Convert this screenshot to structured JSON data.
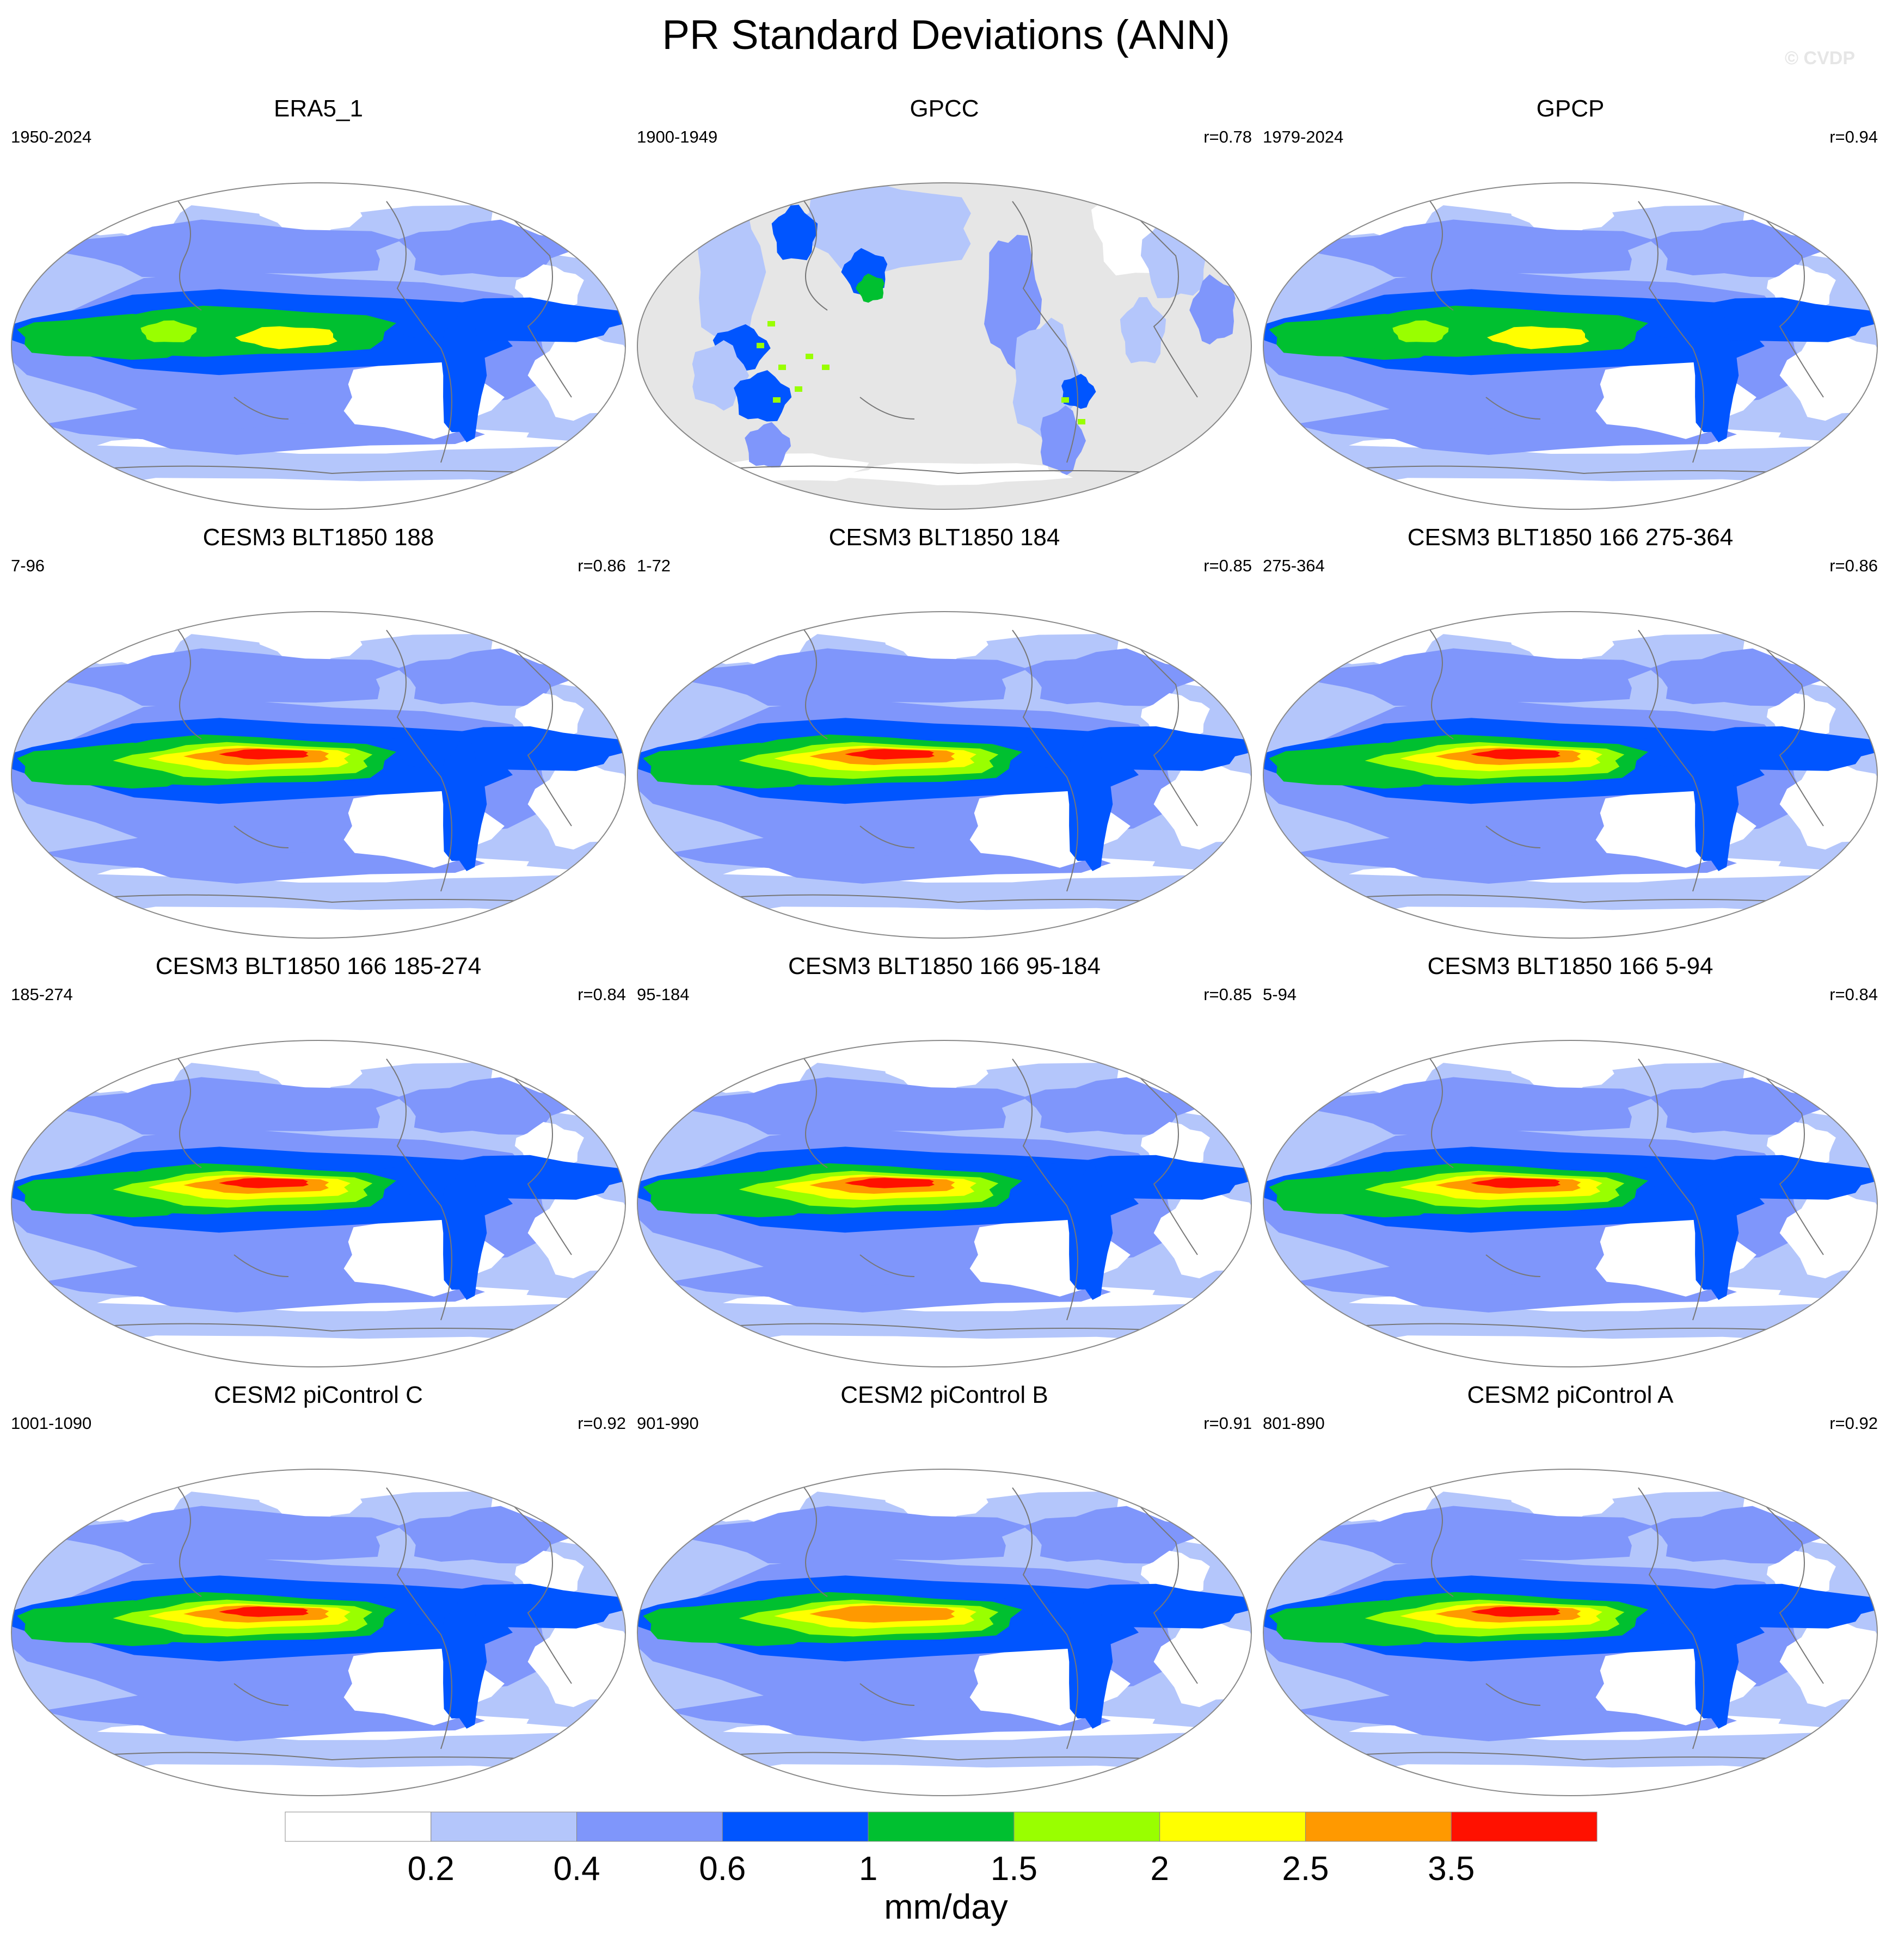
{
  "title": "PR Standard Deviations (ANN)",
  "watermark": "© CVDP",
  "colorbar": {
    "units": "mm/day",
    "colors": [
      "#ffffff",
      "#b4c6fb",
      "#7f96fb",
      "#0055ff",
      "#00c030",
      "#99ff00",
      "#ffff00",
      "#ff9900",
      "#ff1100"
    ],
    "labels": [
      "0.2",
      "0.4",
      "0.6",
      "1",
      "1.5",
      "2",
      "2.5",
      "3.5"
    ]
  },
  "colors": {
    "ocean_missing": "#e6e6e6",
    "coast": "#777777",
    "map_border": "#888888"
  },
  "panels": [
    {
      "title": "ERA5_1",
      "period": "1950-2024",
      "corr": "",
      "style": "obs",
      "peak": 2
    },
    {
      "title": "GPCC",
      "period": "1900-1949",
      "corr": "r=0.78",
      "style": "land",
      "peak": 3
    },
    {
      "title": "GPCP",
      "period": "1979-2024",
      "corr": "r=0.94",
      "style": "obs",
      "peak": 2
    },
    {
      "title": "CESM3 BLT1850 188",
      "period": "7-96",
      "corr": "r=0.86",
      "style": "model",
      "peak": 8
    },
    {
      "title": "CESM3 BLT1850 184",
      "period": "1-72",
      "corr": "r=0.85",
      "style": "model",
      "peak": 8
    },
    {
      "title": "CESM3 BLT1850 166 275-364",
      "period": "275-364",
      "corr": "r=0.86",
      "style": "model",
      "peak": 8
    },
    {
      "title": "CESM3 BLT1850 166 185-274",
      "period": "185-274",
      "corr": "r=0.84",
      "style": "model",
      "peak": 8
    },
    {
      "title": "CESM3 BLT1850 166 95-184",
      "period": "95-184",
      "corr": "r=0.85",
      "style": "model",
      "peak": 8
    },
    {
      "title": "CESM3 BLT1850 166 5-94",
      "period": "5-94",
      "corr": "r=0.84",
      "style": "model",
      "peak": 8
    },
    {
      "title": "CESM2 piControl C",
      "period": "1001-1090",
      "corr": "r=0.92",
      "style": "cesm2",
      "peak": 8
    },
    {
      "title": "CESM2 piControl B",
      "period": "901-990",
      "corr": "r=0.91",
      "style": "cesm2",
      "peak": 7
    },
    {
      "title": "CESM2 piControl A",
      "period": "801-890",
      "corr": "r=0.92",
      "style": "cesm2",
      "peak": 8
    }
  ]
}
